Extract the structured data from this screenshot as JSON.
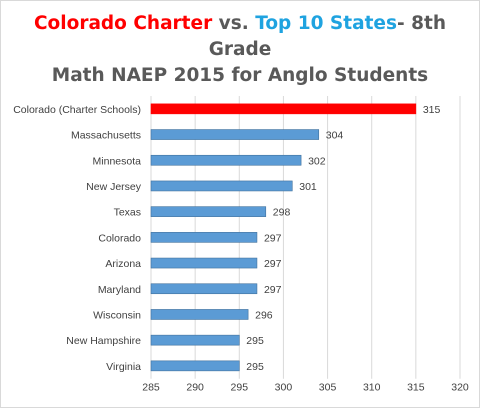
{
  "chart_data": {
    "type": "bar",
    "orientation": "horizontal",
    "title": {
      "line1": {
        "part1": "Colorado Charter",
        "part2": " vs. ",
        "part3": "Top 10 States",
        "part4": "- 8th Grade"
      },
      "line2": "Math NAEP 2015 for Anglo Students"
    },
    "categories": [
      "Colorado (Charter Schools)",
      "Massachusetts",
      "Minnesota",
      "New Jersey",
      "Texas",
      "Colorado",
      "Arizona",
      "Maryland",
      "Wisconsin",
      "New Hampshire",
      "Virginia"
    ],
    "values": [
      315,
      304,
      302,
      301,
      298,
      297,
      297,
      297,
      296,
      295,
      295
    ],
    "highlight_index": 0,
    "xlim": [
      285,
      320
    ],
    "xticks": [
      285,
      290,
      295,
      300,
      305,
      310,
      315,
      320
    ],
    "grid": "vertical",
    "legend": "none",
    "colors": {
      "highlight": "#ff0000",
      "bar": "#5b9bd5",
      "bar_edge": "#41719c",
      "grid": "#d9d9d9",
      "title_gray": "#595959",
      "title_red": "#ff0000",
      "title_blue": "#1fa3e0"
    }
  }
}
